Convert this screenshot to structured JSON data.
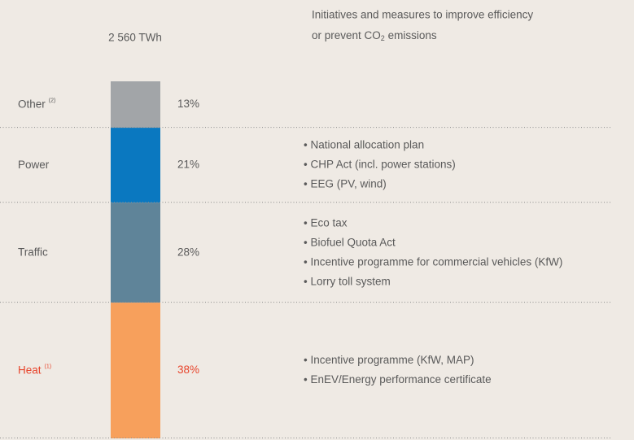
{
  "chart_data": {
    "type": "stacked-bar",
    "total_label": "2 560 TWh",
    "heading": {
      "line1": "Initiatives and measures to improve efficiency",
      "line2_before": "or prevent CO",
      "subscript": "2",
      "line2_after": " emissions"
    },
    "series": [
      {
        "name": "Other",
        "note": "(2)",
        "color": "#a2a5a8",
        "values": [
          13
        ],
        "value_labels": [
          "13%"
        ],
        "measures": []
      },
      {
        "name": "Power",
        "color": "#0a78c0",
        "values": [
          21
        ],
        "value_labels": [
          "21%"
        ],
        "measures": [
          "• National allocation plan",
          "• CHP Act (incl. power stations)",
          "• EEG (PV, wind)"
        ]
      },
      {
        "name": "Traffic",
        "color": "#5f8499",
        "values": [
          28
        ],
        "value_labels": [
          "28%"
        ],
        "measures": [
          "• Eco tax",
          "• Biofuel Quota Act",
          "• Incentive programme for commercial vehicles (KfW)",
          "• Lorry toll system"
        ]
      },
      {
        "name": "Heat",
        "note": "(1)",
        "color": "#f7a05c",
        "label_color": "#e8452c",
        "values": [
          38
        ],
        "value_labels": [
          "38%"
        ],
        "measures": [
          "• Incentive programme (KfW, MAP)",
          "• EnEV/Energy performance certificate"
        ]
      }
    ]
  }
}
